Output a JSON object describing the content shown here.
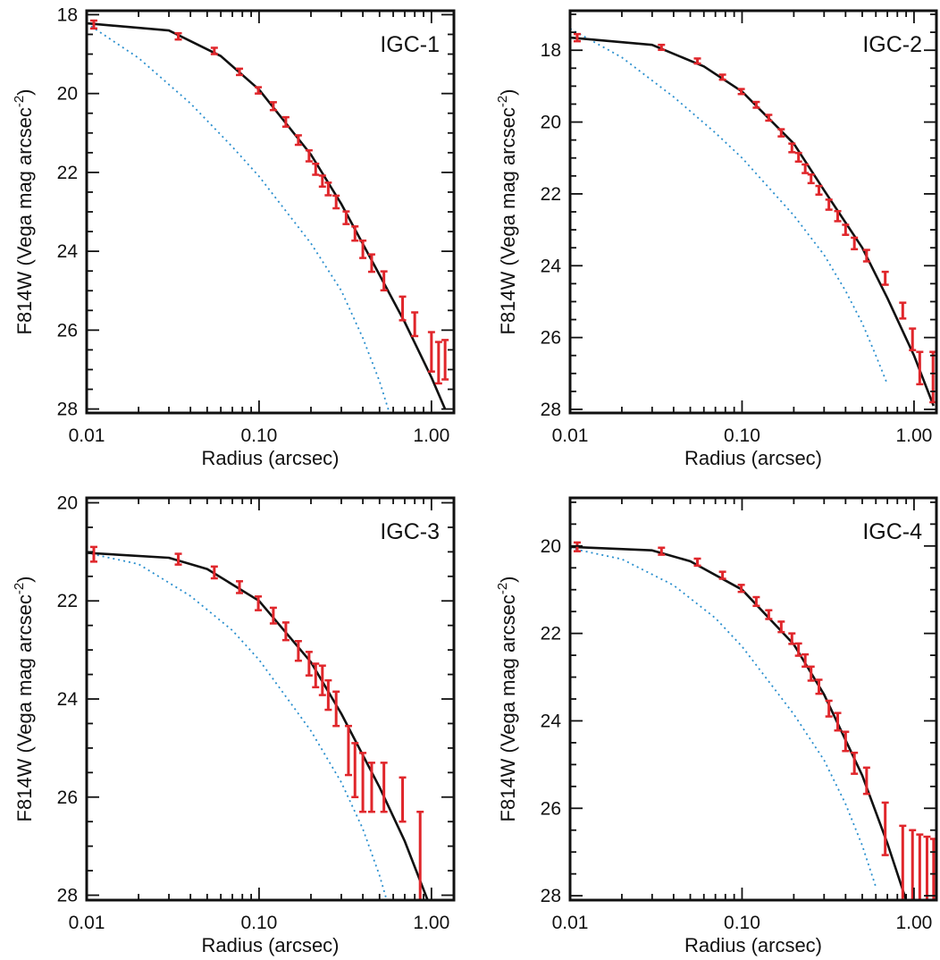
{
  "colors": {
    "fit": "#111111",
    "component": "#2a8fce",
    "errorbars": "#e0262b",
    "axes": "#111111"
  },
  "chart_data": [
    {
      "type": "line",
      "label": "IGC-1",
      "xlabel": "Radius (arcsec)",
      "ylabel_main": "F814W (Vega mag arcsec",
      "ylabel_exp": "-2",
      "ylabel_close": ")",
      "xscale": "log",
      "xlim": [
        0.01,
        1.35
      ],
      "ylim": [
        28.1,
        17.9
      ],
      "xticks": [
        0.01,
        0.1,
        1.0
      ],
      "xtick_labels": [
        "0.01",
        "0.10",
        "1.00"
      ],
      "yticks": [
        18,
        20,
        22,
        24,
        26,
        28
      ],
      "ytick_labels": [
        "18",
        "20",
        "22",
        "24",
        "26",
        "28"
      ],
      "data": [
        {
          "r": 0.011,
          "mu": 18.25,
          "lo": 18.15,
          "hi": 18.35
        },
        {
          "r": 0.034,
          "mu": 18.55,
          "lo": 18.47,
          "hi": 18.63
        },
        {
          "r": 0.055,
          "mu": 18.92,
          "lo": 18.84,
          "hi": 19.0
        },
        {
          "r": 0.077,
          "mu": 19.45,
          "lo": 19.37,
          "hi": 19.53
        },
        {
          "r": 0.099,
          "mu": 19.92,
          "lo": 19.84,
          "hi": 20.0
        },
        {
          "r": 0.121,
          "mu": 20.32,
          "lo": 20.22,
          "hi": 20.42
        },
        {
          "r": 0.143,
          "mu": 20.72,
          "lo": 20.6,
          "hi": 20.84
        },
        {
          "r": 0.169,
          "mu": 21.18,
          "lo": 21.06,
          "hi": 21.3
        },
        {
          "r": 0.195,
          "mu": 21.58,
          "lo": 21.44,
          "hi": 21.72
        },
        {
          "r": 0.213,
          "mu": 21.92,
          "lo": 21.78,
          "hi": 22.06
        },
        {
          "r": 0.233,
          "mu": 22.22,
          "lo": 22.08,
          "hi": 22.36
        },
        {
          "r": 0.252,
          "mu": 22.42,
          "lo": 22.26,
          "hi": 22.58
        },
        {
          "r": 0.28,
          "mu": 22.75,
          "lo": 22.59,
          "hi": 22.91
        },
        {
          "r": 0.32,
          "mu": 23.15,
          "lo": 22.99,
          "hi": 23.31
        },
        {
          "r": 0.36,
          "mu": 23.55,
          "lo": 23.37,
          "hi": 23.73
        },
        {
          "r": 0.4,
          "mu": 23.95,
          "lo": 23.73,
          "hi": 24.17
        },
        {
          "r": 0.45,
          "mu": 24.3,
          "lo": 24.08,
          "hi": 24.52
        },
        {
          "r": 0.53,
          "mu": 24.75,
          "lo": 24.51,
          "hi": 24.99
        },
        {
          "r": 0.68,
          "mu": 25.45,
          "lo": 25.15,
          "hi": 25.75
        },
        {
          "r": 0.8,
          "mu": 25.85,
          "lo": 25.55,
          "hi": 26.15
        },
        {
          "r": 1.0,
          "mu": 26.55,
          "lo": 26.05,
          "hi": 27.05
        },
        {
          "r": 1.1,
          "mu": 26.8,
          "lo": 26.3,
          "hi": 27.35
        },
        {
          "r": 1.2,
          "mu": 26.75,
          "lo": 26.25,
          "hi": 27.25
        }
      ],
      "fit": {
        "r": [
          0.01,
          0.03,
          0.06,
          0.1,
          0.2,
          0.3,
          0.5,
          0.7,
          1.0,
          1.2
        ],
        "mu": [
          18.22,
          18.4,
          19.05,
          19.9,
          21.55,
          22.8,
          24.6,
          25.8,
          27.2,
          28.0
        ]
      },
      "component": {
        "r": [
          0.01,
          0.02,
          0.04,
          0.07,
          0.1,
          0.2,
          0.3,
          0.4,
          0.5,
          0.57
        ],
        "mu": [
          18.22,
          19.1,
          20.25,
          21.35,
          22.1,
          23.8,
          25.0,
          26.2,
          27.3,
          28.1
        ]
      }
    },
    {
      "type": "line",
      "label": "IGC-2",
      "xlabel": "Radius (arcsec)",
      "ylabel_main": "F814W (Vega mag arcsec",
      "ylabel_exp": "-2",
      "ylabel_close": ")",
      "xscale": "log",
      "xlim": [
        0.01,
        1.35
      ],
      "ylim": [
        28.1,
        16.9
      ],
      "xticks": [
        0.01,
        0.1,
        1.0
      ],
      "xtick_labels": [
        "0.01",
        "0.10",
        "1.00"
      ],
      "yticks": [
        18,
        20,
        22,
        24,
        26,
        28
      ],
      "ytick_labels": [
        "18",
        "20",
        "22",
        "24",
        "26",
        "28"
      ],
      "data": [
        {
          "r": 0.011,
          "mu": 17.65,
          "lo": 17.55,
          "hi": 17.75
        },
        {
          "r": 0.034,
          "mu": 17.92,
          "lo": 17.85,
          "hi": 17.99
        },
        {
          "r": 0.055,
          "mu": 18.3,
          "lo": 18.23,
          "hi": 18.37
        },
        {
          "r": 0.077,
          "mu": 18.75,
          "lo": 18.68,
          "hi": 18.82
        },
        {
          "r": 0.099,
          "mu": 19.15,
          "lo": 19.08,
          "hi": 19.22
        },
        {
          "r": 0.121,
          "mu": 19.52,
          "lo": 19.44,
          "hi": 19.6
        },
        {
          "r": 0.143,
          "mu": 19.88,
          "lo": 19.8,
          "hi": 19.96
        },
        {
          "r": 0.169,
          "mu": 20.3,
          "lo": 20.2,
          "hi": 20.4
        },
        {
          "r": 0.195,
          "mu": 20.72,
          "lo": 20.6,
          "hi": 20.84
        },
        {
          "r": 0.213,
          "mu": 20.98,
          "lo": 20.86,
          "hi": 21.1
        },
        {
          "r": 0.233,
          "mu": 21.3,
          "lo": 21.18,
          "hi": 21.42
        },
        {
          "r": 0.252,
          "mu": 21.58,
          "lo": 21.46,
          "hi": 21.7
        },
        {
          "r": 0.28,
          "mu": 21.9,
          "lo": 21.78,
          "hi": 22.02
        },
        {
          "r": 0.32,
          "mu": 22.3,
          "lo": 22.16,
          "hi": 22.44
        },
        {
          "r": 0.36,
          "mu": 22.62,
          "lo": 22.48,
          "hi": 22.76
        },
        {
          "r": 0.4,
          "mu": 23.0,
          "lo": 22.86,
          "hi": 23.14
        },
        {
          "r": 0.45,
          "mu": 23.38,
          "lo": 23.22,
          "hi": 23.54
        },
        {
          "r": 0.53,
          "mu": 23.72,
          "lo": 23.56,
          "hi": 23.88
        },
        {
          "r": 0.68,
          "mu": 24.35,
          "lo": 24.17,
          "hi": 24.53
        },
        {
          "r": 0.86,
          "mu": 25.25,
          "lo": 25.03,
          "hi": 25.47
        },
        {
          "r": 0.98,
          "mu": 26.05,
          "lo": 25.75,
          "hi": 26.35
        },
        {
          "r": 1.08,
          "mu": 26.85,
          "lo": 26.4,
          "hi": 27.3
        },
        {
          "r": 1.29,
          "mu": 27.1,
          "lo": 26.4,
          "hi": 27.8
        }
      ],
      "fit": {
        "r": [
          0.01,
          0.03,
          0.06,
          0.1,
          0.2,
          0.3,
          0.5,
          0.7,
          1.0,
          1.3
        ],
        "mu": [
          17.65,
          17.85,
          18.45,
          19.15,
          20.6,
          21.9,
          23.5,
          24.9,
          26.5,
          27.9
        ]
      },
      "component": {
        "r": [
          0.01,
          0.02,
          0.04,
          0.07,
          0.1,
          0.2,
          0.3,
          0.4,
          0.5,
          0.6,
          0.7
        ],
        "mu": [
          17.4,
          18.2,
          19.3,
          20.3,
          21.0,
          22.6,
          23.7,
          24.7,
          25.6,
          26.5,
          27.3
        ]
      }
    },
    {
      "type": "line",
      "label": "IGC-3",
      "xlabel": "Radius (arcsec)",
      "ylabel_main": "F814W (Vega mag arcsec",
      "ylabel_exp": "-2",
      "ylabel_close": ")",
      "xscale": "log",
      "xlim": [
        0.01,
        1.35
      ],
      "ylim": [
        28.1,
        19.9
      ],
      "xticks": [
        0.01,
        0.1,
        1.0
      ],
      "xtick_labels": [
        "0.01",
        "0.10",
        "1.00"
      ],
      "yticks": [
        20,
        22,
        24,
        26,
        28
      ],
      "ytick_labels": [
        "20",
        "22",
        "24",
        "26",
        "28"
      ],
      "data": [
        {
          "r": 0.011,
          "mu": 21.05,
          "lo": 20.9,
          "hi": 21.2
        },
        {
          "r": 0.034,
          "mu": 21.15,
          "lo": 21.04,
          "hi": 21.26
        },
        {
          "r": 0.055,
          "mu": 21.42,
          "lo": 21.3,
          "hi": 21.54
        },
        {
          "r": 0.077,
          "mu": 21.72,
          "lo": 21.6,
          "hi": 21.84
        },
        {
          "r": 0.099,
          "mu": 22.05,
          "lo": 21.91,
          "hi": 22.19
        },
        {
          "r": 0.121,
          "mu": 22.3,
          "lo": 22.14,
          "hi": 22.46
        },
        {
          "r": 0.143,
          "mu": 22.62,
          "lo": 22.44,
          "hi": 22.8
        },
        {
          "r": 0.169,
          "mu": 23.02,
          "lo": 22.82,
          "hi": 23.22
        },
        {
          "r": 0.195,
          "mu": 23.28,
          "lo": 23.04,
          "hi": 23.52
        },
        {
          "r": 0.213,
          "mu": 23.52,
          "lo": 23.28,
          "hi": 23.76
        },
        {
          "r": 0.233,
          "mu": 23.62,
          "lo": 23.32,
          "hi": 23.92
        },
        {
          "r": 0.252,
          "mu": 23.92,
          "lo": 23.62,
          "hi": 24.22
        },
        {
          "r": 0.28,
          "mu": 24.2,
          "lo": 23.85,
          "hi": 24.55
        },
        {
          "r": 0.33,
          "mu": 25.05,
          "lo": 24.55,
          "hi": 25.55
        },
        {
          "r": 0.36,
          "mu": 25.45,
          "lo": 24.9,
          "hi": 26.0
        },
        {
          "r": 0.4,
          "mu": 25.7,
          "lo": 25.1,
          "hi": 26.3
        },
        {
          "r": 0.45,
          "mu": 25.8,
          "lo": 25.3,
          "hi": 26.3
        },
        {
          "r": 0.53,
          "mu": 25.8,
          "lo": 25.3,
          "hi": 26.3
        },
        {
          "r": 0.68,
          "mu": 26.05,
          "lo": 25.6,
          "hi": 26.5
        },
        {
          "r": 0.86,
          "mu": 27.55,
          "lo": 26.3,
          "hi": 28.1
        }
      ],
      "fit": {
        "r": [
          0.01,
          0.03,
          0.05,
          0.1,
          0.2,
          0.3,
          0.5,
          0.7,
          0.95
        ],
        "mu": [
          21.02,
          21.12,
          21.35,
          22.0,
          23.25,
          24.3,
          25.8,
          26.9,
          28.1
        ]
      },
      "component": {
        "r": [
          0.01,
          0.02,
          0.04,
          0.07,
          0.1,
          0.2,
          0.3,
          0.4,
          0.5,
          0.55
        ],
        "mu": [
          21.02,
          21.25,
          21.9,
          22.6,
          23.2,
          24.65,
          25.7,
          26.65,
          27.6,
          28.1
        ]
      }
    },
    {
      "type": "line",
      "label": "IGC-4",
      "xlabel": "Radius (arcsec)",
      "ylabel_main": "F814W (Vega mag arcsec",
      "ylabel_exp": "-2",
      "ylabel_close": ")",
      "xscale": "log",
      "xlim": [
        0.01,
        1.35
      ],
      "ylim": [
        28.1,
        18.9
      ],
      "xticks": [
        0.01,
        0.1,
        1.0
      ],
      "xtick_labels": [
        "0.01",
        "0.10",
        "1.00"
      ],
      "yticks": [
        20,
        22,
        24,
        26,
        28
      ],
      "ytick_labels": [
        "20",
        "22",
        "24",
        "26",
        "28"
      ],
      "data": [
        {
          "r": 0.011,
          "mu": 20.02,
          "lo": 19.92,
          "hi": 20.12
        },
        {
          "r": 0.034,
          "mu": 20.12,
          "lo": 20.04,
          "hi": 20.2
        },
        {
          "r": 0.055,
          "mu": 20.37,
          "lo": 20.29,
          "hi": 20.45
        },
        {
          "r": 0.077,
          "mu": 20.67,
          "lo": 20.59,
          "hi": 20.75
        },
        {
          "r": 0.099,
          "mu": 20.97,
          "lo": 20.89,
          "hi": 21.05
        },
        {
          "r": 0.121,
          "mu": 21.27,
          "lo": 21.17,
          "hi": 21.37
        },
        {
          "r": 0.143,
          "mu": 21.57,
          "lo": 21.47,
          "hi": 21.67
        },
        {
          "r": 0.169,
          "mu": 21.85,
          "lo": 21.73,
          "hi": 21.97
        },
        {
          "r": 0.195,
          "mu": 22.12,
          "lo": 22.0,
          "hi": 22.24
        },
        {
          "r": 0.213,
          "mu": 22.37,
          "lo": 22.23,
          "hi": 22.51
        },
        {
          "r": 0.233,
          "mu": 22.62,
          "lo": 22.48,
          "hi": 22.76
        },
        {
          "r": 0.252,
          "mu": 22.92,
          "lo": 22.76,
          "hi": 23.08
        },
        {
          "r": 0.28,
          "mu": 23.22,
          "lo": 23.06,
          "hi": 23.38
        },
        {
          "r": 0.32,
          "mu": 23.72,
          "lo": 23.54,
          "hi": 23.9
        },
        {
          "r": 0.36,
          "mu": 24.02,
          "lo": 23.82,
          "hi": 24.22
        },
        {
          "r": 0.4,
          "mu": 24.47,
          "lo": 24.25,
          "hi": 24.69
        },
        {
          "r": 0.45,
          "mu": 24.97,
          "lo": 24.73,
          "hi": 25.21
        },
        {
          "r": 0.53,
          "mu": 25.37,
          "lo": 25.07,
          "hi": 25.67
        },
        {
          "r": 0.68,
          "mu": 26.47,
          "lo": 25.87,
          "hi": 27.07
        },
        {
          "r": 0.86,
          "mu": 27.35,
          "lo": 26.4,
          "hi": 28.1
        },
        {
          "r": 0.98,
          "mu": 27.35,
          "lo": 26.5,
          "hi": 28.1
        },
        {
          "r": 1.08,
          "mu": 27.4,
          "lo": 26.6,
          "hi": 28.1
        },
        {
          "r": 1.19,
          "mu": 27.4,
          "lo": 26.65,
          "hi": 28.1
        },
        {
          "r": 1.3,
          "mu": 27.4,
          "lo": 26.7,
          "hi": 28.1
        }
      ],
      "fit": {
        "r": [
          0.01,
          0.03,
          0.05,
          0.1,
          0.2,
          0.3,
          0.5,
          0.7,
          0.9
        ],
        "mu": [
          20.02,
          20.1,
          20.35,
          21.0,
          22.25,
          23.4,
          25.25,
          26.8,
          28.1
        ]
      },
      "component": {
        "r": [
          0.01,
          0.02,
          0.04,
          0.07,
          0.1,
          0.2,
          0.3,
          0.4,
          0.5,
          0.6
        ],
        "mu": [
          20.05,
          20.3,
          20.9,
          21.65,
          22.3,
          23.85,
          24.9,
          25.9,
          26.85,
          27.8
        ]
      }
    }
  ]
}
